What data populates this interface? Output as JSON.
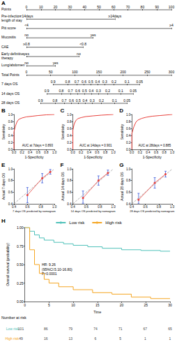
{
  "chart_data": [
    {
      "type": "nomogram",
      "title": "A",
      "xlim": [
        0,
        100
      ],
      "x2lim": [
        0,
        300
      ],
      "rows": [
        {
          "label": "Points",
          "ticks": [
            0,
            10,
            20,
            30,
            40,
            50,
            60,
            70,
            80,
            90,
            100
          ]
        },
        {
          "label": "Pre-infection length of stay",
          "ticks": [
            {
              "value": 0,
              "label": "<14days"
            },
            {
              "value": 61,
              "label": "≥14days"
            }
          ]
        },
        {
          "label": "Pitt score",
          "ticks": [
            {
              "value": 0,
              "label": "<4"
            },
            {
              "value": 100,
              "label": "≥4"
            }
          ]
        },
        {
          "label": "Mucositis",
          "ticks": [
            {
              "value": 0,
              "label": "no"
            },
            {
              "value": 46,
              "label": "yes"
            }
          ]
        },
        {
          "label": "CAE",
          "ticks": [
            {
              "value": 0,
              "label": "≥0.8"
            },
            {
              "value": 39,
              "label": "<0.8"
            }
          ]
        },
        {
          "label": "Early definitive therapy",
          "ticks": [
            {
              "value": 0,
              "label": "yes"
            },
            {
              "value": 36,
              "label": "no"
            }
          ]
        },
        {
          "label": "Lung/abdomen",
          "ticks": [
            {
              "value": 0,
              "label": "no"
            },
            {
              "value": 20,
              "label": "yes"
            }
          ]
        },
        {
          "label": "Total Points",
          "axis": "x2",
          "ticks": [
            0,
            50,
            100,
            150,
            200,
            250,
            300
          ]
        },
        {
          "label": "7 days OS",
          "axis": "x2",
          "ticks": [
            {
              "value": 55,
              "label": "0.9"
            },
            {
              "value": 85,
              "label": "0.8"
            },
            {
              "value": 104,
              "label": "0.7"
            },
            {
              "value": 119,
              "label": "0.6"
            },
            {
              "value": 133,
              "label": "0.5"
            },
            {
              "value": 147,
              "label": "0.4"
            },
            {
              "value": 162,
              "label": "0.3"
            },
            {
              "value": 181,
              "label": "0.2"
            },
            {
              "value": 208,
              "label": "0.1"
            },
            {
              "value": 234,
              "label": "0.05"
            }
          ]
        },
        {
          "label": "14 days OS",
          "axis": "x2",
          "ticks": [
            {
              "value": 42,
              "label": "0.9"
            },
            {
              "value": 72,
              "label": "0.8"
            },
            {
              "value": 91,
              "label": "0.7"
            },
            {
              "value": 106,
              "label": "0.6"
            },
            {
              "value": 120,
              "label": "0.5"
            },
            {
              "value": 134,
              "label": "0.4"
            },
            {
              "value": 149,
              "label": "0.3"
            },
            {
              "value": 168,
              "label": "0.2"
            },
            {
              "value": 195,
              "label": "0.1"
            },
            {
              "value": 221,
              "label": "0.05"
            }
          ]
        },
        {
          "label": "28 days OS",
          "axis": "x2",
          "ticks": [
            {
              "value": 29,
              "label": "0.9"
            },
            {
              "value": 59,
              "label": "0.8"
            },
            {
              "value": 78,
              "label": "0.7"
            },
            {
              "value": 93,
              "label": "0.6"
            },
            {
              "value": 107,
              "label": "0.5"
            },
            {
              "value": 121,
              "label": "0.4"
            },
            {
              "value": 136,
              "label": "0.3"
            },
            {
              "value": 155,
              "label": "0.2"
            },
            {
              "value": 182,
              "label": "0.1"
            },
            {
              "value": 208,
              "label": "0.05"
            }
          ]
        }
      ]
    },
    {
      "type": "roc",
      "title": "B",
      "x_label": "1-Specificity",
      "y_label": "Sensitivity",
      "annotation": "AUC at 7days = 0.893",
      "xlim": [
        0,
        1
      ],
      "ylim": [
        0,
        1
      ],
      "xticks": [
        {
          "value": 0,
          "label": "0.0"
        },
        0.2,
        0.4,
        0.6,
        0.8,
        {
          "value": 1,
          "label": "1.0"
        }
      ],
      "yticks": [
        {
          "value": 0,
          "label": "0.0"
        },
        0.2,
        0.4,
        0.6,
        0.8,
        {
          "value": 1,
          "label": "1.0"
        }
      ],
      "series": [
        {
          "color": "#e8413c",
          "x": [
            0,
            0,
            0.04,
            0.08,
            0.12,
            0.2,
            0.3,
            0.45,
            0.6,
            0.8,
            1
          ],
          "values": [
            0,
            0.5,
            0.68,
            0.8,
            0.86,
            0.9,
            0.93,
            0.95,
            0.97,
            0.99,
            1
          ]
        }
      ]
    },
    {
      "type": "roc",
      "title": "C",
      "x_label": "1-Specificity",
      "y_label": "Sensitivity",
      "annotation": "AUC at 14days = 0.901",
      "xlim": [
        0,
        1
      ],
      "ylim": [
        0,
        1
      ],
      "xticks": [
        {
          "value": 0,
          "label": "0.0"
        },
        0.2,
        0.4,
        0.6,
        0.8,
        {
          "value": 1,
          "label": "1.0"
        }
      ],
      "yticks": [
        {
          "value": 0,
          "label": "0.0"
        },
        0.2,
        0.4,
        0.6,
        0.8,
        {
          "value": 1,
          "label": "1.0"
        }
      ],
      "series": [
        {
          "color": "#e8413c",
          "x": [
            0,
            0,
            0.03,
            0.07,
            0.12,
            0.2,
            0.32,
            0.5,
            0.7,
            1
          ],
          "values": [
            0,
            0.55,
            0.72,
            0.82,
            0.88,
            0.91,
            0.94,
            0.96,
            0.98,
            1
          ]
        }
      ]
    },
    {
      "type": "roc",
      "title": "D",
      "x_label": "1-Specificity",
      "y_label": "Sensitivity",
      "annotation": "AUC at 28days = 0.885",
      "xlim": [
        0,
        1
      ],
      "ylim": [
        0,
        1
      ],
      "xticks": [
        {
          "value": 0,
          "label": "0.0"
        },
        0.2,
        0.4,
        0.6,
        0.8,
        {
          "value": 1,
          "label": "1.0"
        }
      ],
      "yticks": [
        {
          "value": 0,
          "label": "0.0"
        },
        0.2,
        0.4,
        0.6,
        0.8,
        {
          "value": 1,
          "label": "1.0"
        }
      ],
      "series": [
        {
          "color": "#e8413c",
          "x": [
            0,
            0,
            0.05,
            0.1,
            0.15,
            0.25,
            0.35,
            0.5,
            0.7,
            1
          ],
          "values": [
            0,
            0.45,
            0.65,
            0.78,
            0.84,
            0.89,
            0.92,
            0.95,
            0.97,
            1
          ]
        }
      ]
    },
    {
      "type": "calibration",
      "title": "E",
      "x_label": "7 days OS predicted by nomogram",
      "y_label": "Actual 7 days OS",
      "xlim": [
        0.4,
        1
      ],
      "ylim": [
        0.4,
        1
      ],
      "xticks": [
        0.4,
        0.6,
        0.8,
        {
          "value": 1,
          "label": "1.0"
        }
      ],
      "yticks": [
        0.4,
        0.6,
        0.8,
        {
          "value": 1,
          "label": "1.0"
        }
      ],
      "series": [
        {
          "color": "#9e9e9e",
          "line_style": "dashed",
          "x": [
            0.4,
            1
          ],
          "values": [
            0.4,
            1
          ]
        },
        {
          "color": "#e8413c",
          "marker": "circle",
          "x": [
            0.6,
            0.82,
            0.94
          ],
          "values": [
            0.55,
            0.84,
            0.95
          ],
          "errors": [
            [
              0.42,
              0.68
            ],
            [
              0.76,
              0.92
            ],
            [
              0.91,
              0.99
            ]
          ]
        }
      ]
    },
    {
      "type": "calibration",
      "title": "F",
      "x_label": "14 days OS predicted by nomogram",
      "y_label": "Actual 14 days OS",
      "xlim": [
        0.4,
        1
      ],
      "ylim": [
        0.4,
        1
      ],
      "xticks": [
        0.4,
        0.6,
        0.8,
        {
          "value": 1,
          "label": "1.0"
        }
      ],
      "yticks": [
        0.4,
        0.6,
        0.8,
        {
          "value": 1,
          "label": "1.0"
        }
      ],
      "series": [
        {
          "color": "#9e9e9e",
          "line_style": "dashed",
          "x": [
            0.4,
            1
          ],
          "values": [
            0.4,
            1
          ]
        },
        {
          "color": "#e8413c",
          "marker": "circle",
          "x": [
            0.55,
            0.78,
            0.92
          ],
          "values": [
            0.5,
            0.8,
            0.93
          ],
          "errors": [
            [
              0.41,
              0.62
            ],
            [
              0.72,
              0.88
            ],
            [
              0.89,
              0.98
            ]
          ]
        }
      ]
    },
    {
      "type": "calibration",
      "title": "G",
      "x_label": "28 days OS predicted by nomogram",
      "y_label": "Actual 28 days OS",
      "xlim": [
        0.4,
        1
      ],
      "ylim": [
        0.4,
        1
      ],
      "xticks": [
        0.4,
        0.6,
        0.8,
        {
          "value": 1,
          "label": "1.0"
        }
      ],
      "yticks": [
        0.4,
        0.6,
        0.8,
        {
          "value": 1,
          "label": "1.0"
        }
      ],
      "series": [
        {
          "color": "#9e9e9e",
          "line_style": "dashed",
          "x": [
            0.4,
            1
          ],
          "values": [
            0.4,
            1
          ]
        },
        {
          "color": "#e8413c",
          "marker": "circle",
          "x": [
            0.5,
            0.74,
            0.9
          ],
          "values": [
            0.47,
            0.76,
            0.91
          ],
          "errors": [
            [
              0.4,
              0.58
            ],
            [
              0.67,
              0.85
            ],
            [
              0.86,
              0.96
            ]
          ]
        }
      ]
    },
    {
      "type": "survival",
      "title": "H",
      "x_label": "Time",
      "y_label": "Overall survival (probability)",
      "xlim": [
        0,
        30
      ],
      "ylim": [
        0,
        1
      ],
      "xticks": [
        0,
        5,
        10,
        15,
        20,
        25,
        30
      ],
      "yticks": [
        {
          "value": 0,
          "label": "0.00"
        },
        0.25,
        {
          "value": 0.5,
          "label": "0.50"
        },
        0.75,
        {
          "value": 1,
          "label": "1.00"
        }
      ],
      "legend": "top",
      "line_style": "step",
      "series": [
        {
          "name": "Low risk",
          "color": "#4fc1b9",
          "x": [
            0,
            1,
            2,
            3,
            4,
            6,
            8,
            10,
            13,
            16,
            20,
            24,
            28,
            30
          ],
          "values": [
            1,
            0.95,
            0.9,
            0.86,
            0.83,
            0.8,
            0.78,
            0.76,
            0.74,
            0.72,
            0.7,
            0.69,
            0.68,
            0.68
          ]
        },
        {
          "name": "High risk",
          "color": "#f5a623",
          "x": [
            0,
            1,
            2,
            3,
            4,
            5,
            7,
            10,
            14,
            18,
            22,
            26,
            30
          ],
          "values": [
            1,
            0.7,
            0.5,
            0.38,
            0.3,
            0.25,
            0.2,
            0.16,
            0.12,
            0.1,
            0.06,
            0.04,
            0.04
          ]
        }
      ],
      "annotation": [
        "HR: 9.26",
        "(95%CI:5.10-16.80)",
        "P<0.0001"
      ],
      "risk_table": {
        "title": "Number at risk",
        "x": [
          0,
          5,
          10,
          15,
          20,
          25,
          30
        ],
        "rows": [
          {
            "name": "Low risk",
            "values": [
              101,
              86,
              79,
              74,
              71,
              67,
              65
            ]
          },
          {
            "name": "High risk",
            "values": [
              49,
              16,
              13,
              6,
              5,
              1,
              1
            ]
          }
        ]
      }
    }
  ]
}
